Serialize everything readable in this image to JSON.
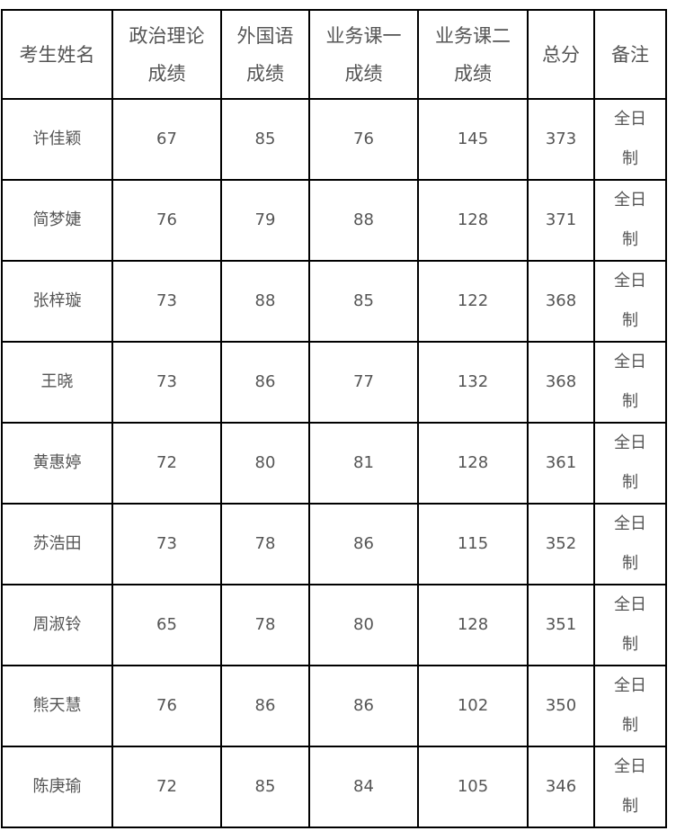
{
  "headers": [
    "考生姓名",
    "政治理论成绩",
    "外国语成绩",
    "业务课一成绩",
    "业务课二成绩",
    "总分",
    "备注"
  ],
  "header_lines": [
    [
      "考生姓名"
    ],
    [
      "政治理论",
      "成绩"
    ],
    [
      "外国语",
      "成绩"
    ],
    [
      "业务课一",
      "成绩"
    ],
    [
      "业务课二",
      "成绩"
    ],
    [
      "总分"
    ],
    [
      "备注"
    ]
  ],
  "rows": [
    [
      "许佳颖",
      "67",
      "85",
      "76",
      "145",
      "373",
      "全日制"
    ],
    [
      "简梦婕",
      "76",
      "79",
      "88",
      "128",
      "371",
      "全日制"
    ],
    [
      "张梓璇",
      "73",
      "88",
      "85",
      "122",
      "368",
      "全日制"
    ],
    [
      "王晓",
      "73",
      "86",
      "77",
      "132",
      "368",
      "全日制"
    ],
    [
      "黄惠婷",
      "72",
      "80",
      "81",
      "128",
      "361",
      "全日制"
    ],
    [
      "苏浩田",
      "73",
      "78",
      "86",
      "115",
      "352",
      "全日制"
    ],
    [
      "周淑铃",
      "65",
      "78",
      "80",
      "128",
      "351",
      "全日制"
    ],
    [
      "熊天慧",
      "76",
      "86",
      "86",
      "102",
      "350",
      "全日制"
    ],
    [
      "陈庚瑜",
      "72",
      "85",
      "84",
      "105",
      "346",
      "全日制"
    ]
  ]
}
